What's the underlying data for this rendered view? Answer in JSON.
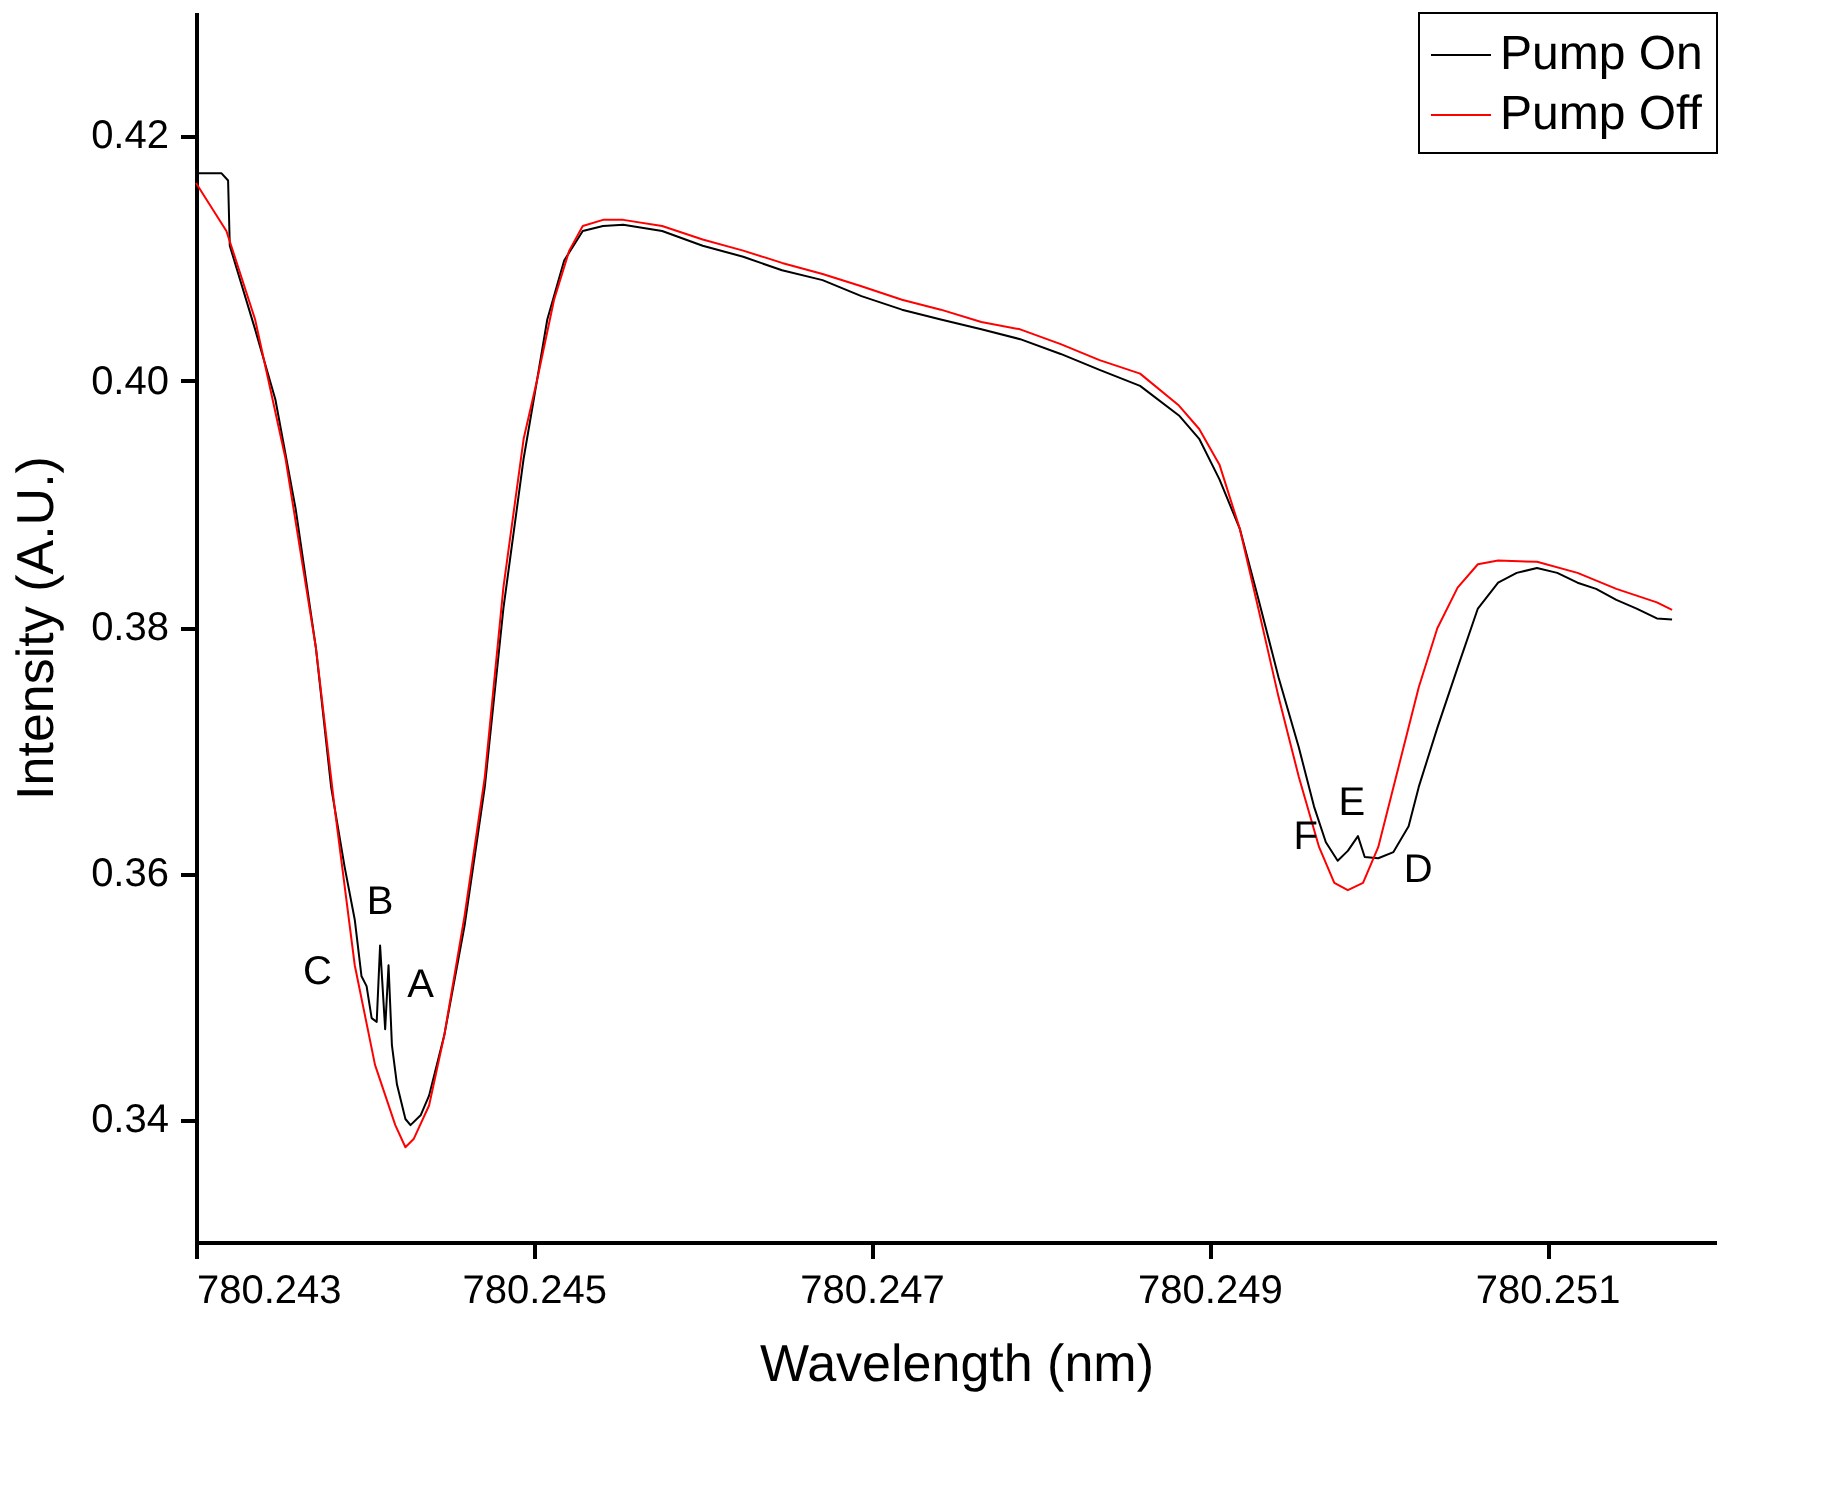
{
  "chart_data": {
    "type": "line",
    "xlabel": "Wavelength (nm)",
    "ylabel": "Intensity (A.U.)",
    "xlim": [
      780.243,
      780.252
    ],
    "xticks": [
      780.243,
      780.245,
      780.247,
      780.249,
      780.251
    ],
    "ylim": [
      0.33,
      0.43
    ],
    "yticks": [
      0.34,
      0.36,
      0.38,
      {
        "value": 0.4,
        "label": "0.40"
      },
      0.42
    ],
    "grid": false,
    "legend": "top right",
    "marker": "none",
    "line_style": "solid",
    "series": [
      {
        "name": "Pump On",
        "color": "#000000",
        "x": [
          780.24301,
          780.24315,
          780.24319,
          780.2432,
          780.24335,
          780.24347,
          780.24359,
          780.24371,
          780.2438,
          780.24388,
          780.24394,
          780.24398,
          780.24401,
          780.24404,
          780.24407,
          780.24409,
          780.24412,
          780.24414,
          780.24416,
          780.24419,
          780.24424,
          780.24427,
          780.24433,
          780.24438,
          780.24447,
          780.24459,
          780.24471,
          780.24482,
          780.24494,
          780.245,
          780.24508,
          780.24518,
          780.24529,
          780.24541,
          780.24553,
          780.24576,
          780.246,
          780.24624,
          780.24647,
          780.24671,
          780.24694,
          780.24718,
          780.24741,
          780.24765,
          780.24788,
          780.24812,
          780.24835,
          780.24859,
          780.24882,
          780.24894,
          780.24906,
          780.24918,
          780.24929,
          780.24941,
          780.24953,
          780.24962,
          780.24969,
          780.24976,
          780.24982,
          780.24988,
          780.24992,
          780.25,
          780.25009,
          780.25018,
          780.25024,
          780.25035,
          780.25047,
          780.25059,
          780.25071,
          780.25082,
          780.25094,
          780.25106,
          780.25118,
          780.25129,
          780.25141,
          780.25153,
          780.25165,
          780.25174
        ],
        "values": [
          0.4169,
          0.4169,
          0.4163,
          0.411,
          0.4042,
          0.3985,
          0.3896,
          0.3783,
          0.367,
          0.3605,
          0.3562,
          0.3516,
          0.3508,
          0.3482,
          0.3479,
          0.3541,
          0.3473,
          0.3525,
          0.346,
          0.3428,
          0.34,
          0.3395,
          0.3403,
          0.3419,
          0.3468,
          0.3557,
          0.367,
          0.3815,
          0.3937,
          0.3985,
          0.405,
          0.4098,
          0.4122,
          0.4126,
          0.4127,
          0.4122,
          0.411,
          0.4101,
          0.409,
          0.4082,
          0.4069,
          0.4058,
          0.405,
          0.4042,
          0.4034,
          0.4022,
          0.4009,
          0.3996,
          0.3972,
          0.3953,
          0.392,
          0.388,
          0.3823,
          0.3759,
          0.3702,
          0.3654,
          0.3625,
          0.361,
          0.3618,
          0.363,
          0.3613,
          0.3612,
          0.3617,
          0.3638,
          0.367,
          0.3718,
          0.3767,
          0.3815,
          0.3836,
          0.3844,
          0.3848,
          0.3844,
          0.3836,
          0.3831,
          0.3822,
          0.3815,
          0.3807,
          0.3806
        ]
      },
      {
        "name": "Pump Off",
        "color": "#ff0000",
        "x": [
          780.243,
          780.24318,
          780.24335,
          780.24353,
          780.24371,
          780.24382,
          780.24394,
          780.24406,
          780.24418,
          780.24424,
          780.24429,
          780.24438,
          780.24447,
          780.24459,
          780.24471,
          780.24482,
          780.24494,
          780.24502,
          780.24512,
          780.24521,
          780.24529,
          780.24541,
          780.24553,
          780.24576,
          780.246,
          780.24624,
          780.24647,
          780.24671,
          780.24694,
          780.24718,
          780.24741,
          780.24765,
          780.24788,
          780.24812,
          780.24835,
          780.24859,
          780.24882,
          780.24894,
          780.24906,
          780.24918,
          780.24929,
          780.24941,
          780.24953,
          780.24965,
          780.24974,
          780.24982,
          780.24991,
          780.25,
          780.25012,
          780.25024,
          780.25035,
          780.25047,
          780.25059,
          780.25071,
          780.25094,
          780.25118,
          780.25141,
          780.25165,
          780.25174
        ],
        "values": [
          0.4161,
          0.4122,
          0.405,
          0.3937,
          0.3783,
          0.3654,
          0.3525,
          0.3444,
          0.3395,
          0.3377,
          0.3384,
          0.3411,
          0.3468,
          0.3565,
          0.3678,
          0.3832,
          0.3953,
          0.4001,
          0.4066,
          0.4106,
          0.4126,
          0.4131,
          0.4131,
          0.4126,
          0.4115,
          0.4106,
          0.4096,
          0.4087,
          0.4077,
          0.4066,
          0.4058,
          0.4048,
          0.4042,
          0.403,
          0.4017,
          0.4006,
          0.398,
          0.3961,
          0.3932,
          0.388,
          0.3815,
          0.3743,
          0.3678,
          0.3621,
          0.3592,
          0.3586,
          0.3592,
          0.3621,
          0.3686,
          0.3751,
          0.3799,
          0.3832,
          0.3851,
          0.3854,
          0.3853,
          0.3844,
          0.3831,
          0.382,
          0.3814
        ]
      }
    ],
    "annotations": [
      {
        "text": "C",
        "x": 780.24398,
        "y": 0.3516
      },
      {
        "text": "B",
        "x": 780.24409,
        "y": 0.3541
      },
      {
        "text": "A",
        "x": 780.24414,
        "y": 0.3525
      },
      {
        "text": "F",
        "x": 780.24976,
        "y": 0.361
      },
      {
        "text": "E",
        "x": 780.24982,
        "y": 0.3618
      },
      {
        "text": "D",
        "x": 780.25,
        "y": 0.3612
      }
    ]
  }
}
